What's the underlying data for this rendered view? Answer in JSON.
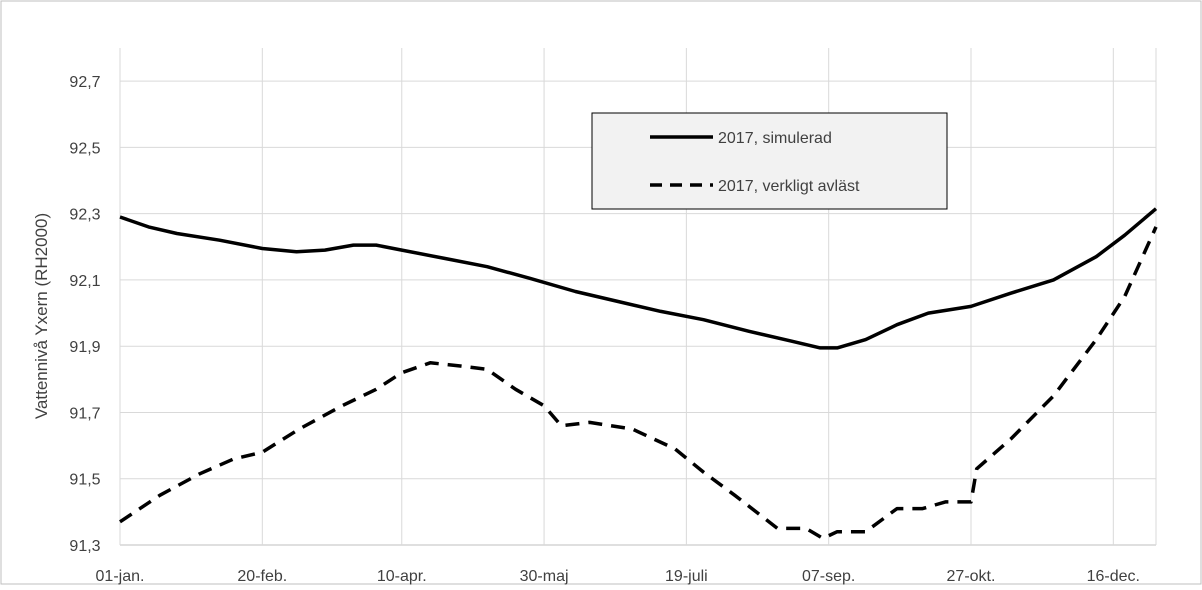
{
  "chart_data": {
    "type": "line",
    "title": "",
    "xlabel": "",
    "ylabel": "Vattennivå Yxern (RH2000)",
    "ylim": [
      91.3,
      92.8
    ],
    "yticks": [
      91.3,
      91.5,
      91.7,
      91.9,
      92.1,
      92.3,
      92.5,
      92.7
    ],
    "ytick_labels": [
      "91,3",
      "91,5",
      "91,7",
      "91,9",
      "92,1",
      "92,3",
      "92,5",
      "92,7"
    ],
    "xlim": [
      "2017-01-01",
      "2017-12-31"
    ],
    "xticks": [
      "2017-01-01",
      "2017-02-20",
      "2017-04-10",
      "2017-05-30",
      "2017-07-19",
      "2017-09-07",
      "2017-10-27",
      "2017-12-16"
    ],
    "xtick_labels": [
      "01-jan.",
      "20-feb.",
      "10-apr.",
      "30-maj",
      "19-juli",
      "07-sep.",
      "27-okt.",
      "16-dec."
    ],
    "grid": true,
    "legend_position": "top-right",
    "series": [
      {
        "name": "2017, simulerad",
        "style": "solid",
        "color": "#000000",
        "points": [
          [
            "2017-01-01",
            92.29
          ],
          [
            "2017-01-11",
            92.26
          ],
          [
            "2017-01-21",
            92.24
          ],
          [
            "2017-02-05",
            92.22
          ],
          [
            "2017-02-20",
            92.195
          ],
          [
            "2017-03-04",
            92.185
          ],
          [
            "2017-03-14",
            92.19
          ],
          [
            "2017-03-24",
            92.205
          ],
          [
            "2017-04-01",
            92.205
          ],
          [
            "2017-04-10",
            92.19
          ],
          [
            "2017-04-25",
            92.165
          ],
          [
            "2017-05-10",
            92.14
          ],
          [
            "2017-05-25",
            92.105
          ],
          [
            "2017-06-10",
            92.065
          ],
          [
            "2017-06-25",
            92.035
          ],
          [
            "2017-07-10",
            92.005
          ],
          [
            "2017-07-25",
            91.98
          ],
          [
            "2017-08-10",
            91.945
          ],
          [
            "2017-08-25",
            91.915
          ],
          [
            "2017-09-04",
            91.895
          ],
          [
            "2017-09-10",
            91.895
          ],
          [
            "2017-09-20",
            91.92
          ],
          [
            "2017-10-01",
            91.965
          ],
          [
            "2017-10-12",
            92.0
          ],
          [
            "2017-10-27",
            92.02
          ],
          [
            "2017-11-10",
            92.06
          ],
          [
            "2017-11-25",
            92.1
          ],
          [
            "2017-12-10",
            92.17
          ],
          [
            "2017-12-20",
            92.235
          ],
          [
            "2017-12-31",
            92.315
          ]
        ]
      },
      {
        "name": "2017, verkligt avläst",
        "style": "dashed",
        "color": "#000000",
        "points": [
          [
            "2017-01-01",
            91.37
          ],
          [
            "2017-01-15",
            91.45
          ],
          [
            "2017-01-29",
            91.515
          ],
          [
            "2017-02-10",
            91.56
          ],
          [
            "2017-02-20",
            91.58
          ],
          [
            "2017-03-05",
            91.65
          ],
          [
            "2017-03-20",
            91.72
          ],
          [
            "2017-04-01",
            91.77
          ],
          [
            "2017-04-10",
            91.82
          ],
          [
            "2017-04-20",
            91.85
          ],
          [
            "2017-05-01",
            91.84
          ],
          [
            "2017-05-10",
            91.83
          ],
          [
            "2017-05-20",
            91.77
          ],
          [
            "2017-05-30",
            91.72
          ],
          [
            "2017-06-05",
            91.66
          ],
          [
            "2017-06-15",
            91.67
          ],
          [
            "2017-06-30",
            91.65
          ],
          [
            "2017-07-15",
            91.59
          ],
          [
            "2017-07-25",
            91.52
          ],
          [
            "2017-08-05",
            91.45
          ],
          [
            "2017-08-20",
            91.35
          ],
          [
            "2017-08-30",
            91.35
          ],
          [
            "2017-09-05",
            91.32
          ],
          [
            "2017-09-10",
            91.34
          ],
          [
            "2017-09-20",
            91.34
          ],
          [
            "2017-10-01",
            91.41
          ],
          [
            "2017-10-10",
            91.41
          ],
          [
            "2017-10-18",
            91.43
          ],
          [
            "2017-10-27",
            91.43
          ],
          [
            "2017-10-29",
            91.53
          ],
          [
            "2017-11-10",
            91.62
          ],
          [
            "2017-11-25",
            91.75
          ],
          [
            "2017-12-10",
            91.92
          ],
          [
            "2017-12-20",
            92.05
          ],
          [
            "2017-12-31",
            92.26
          ]
        ]
      }
    ]
  }
}
